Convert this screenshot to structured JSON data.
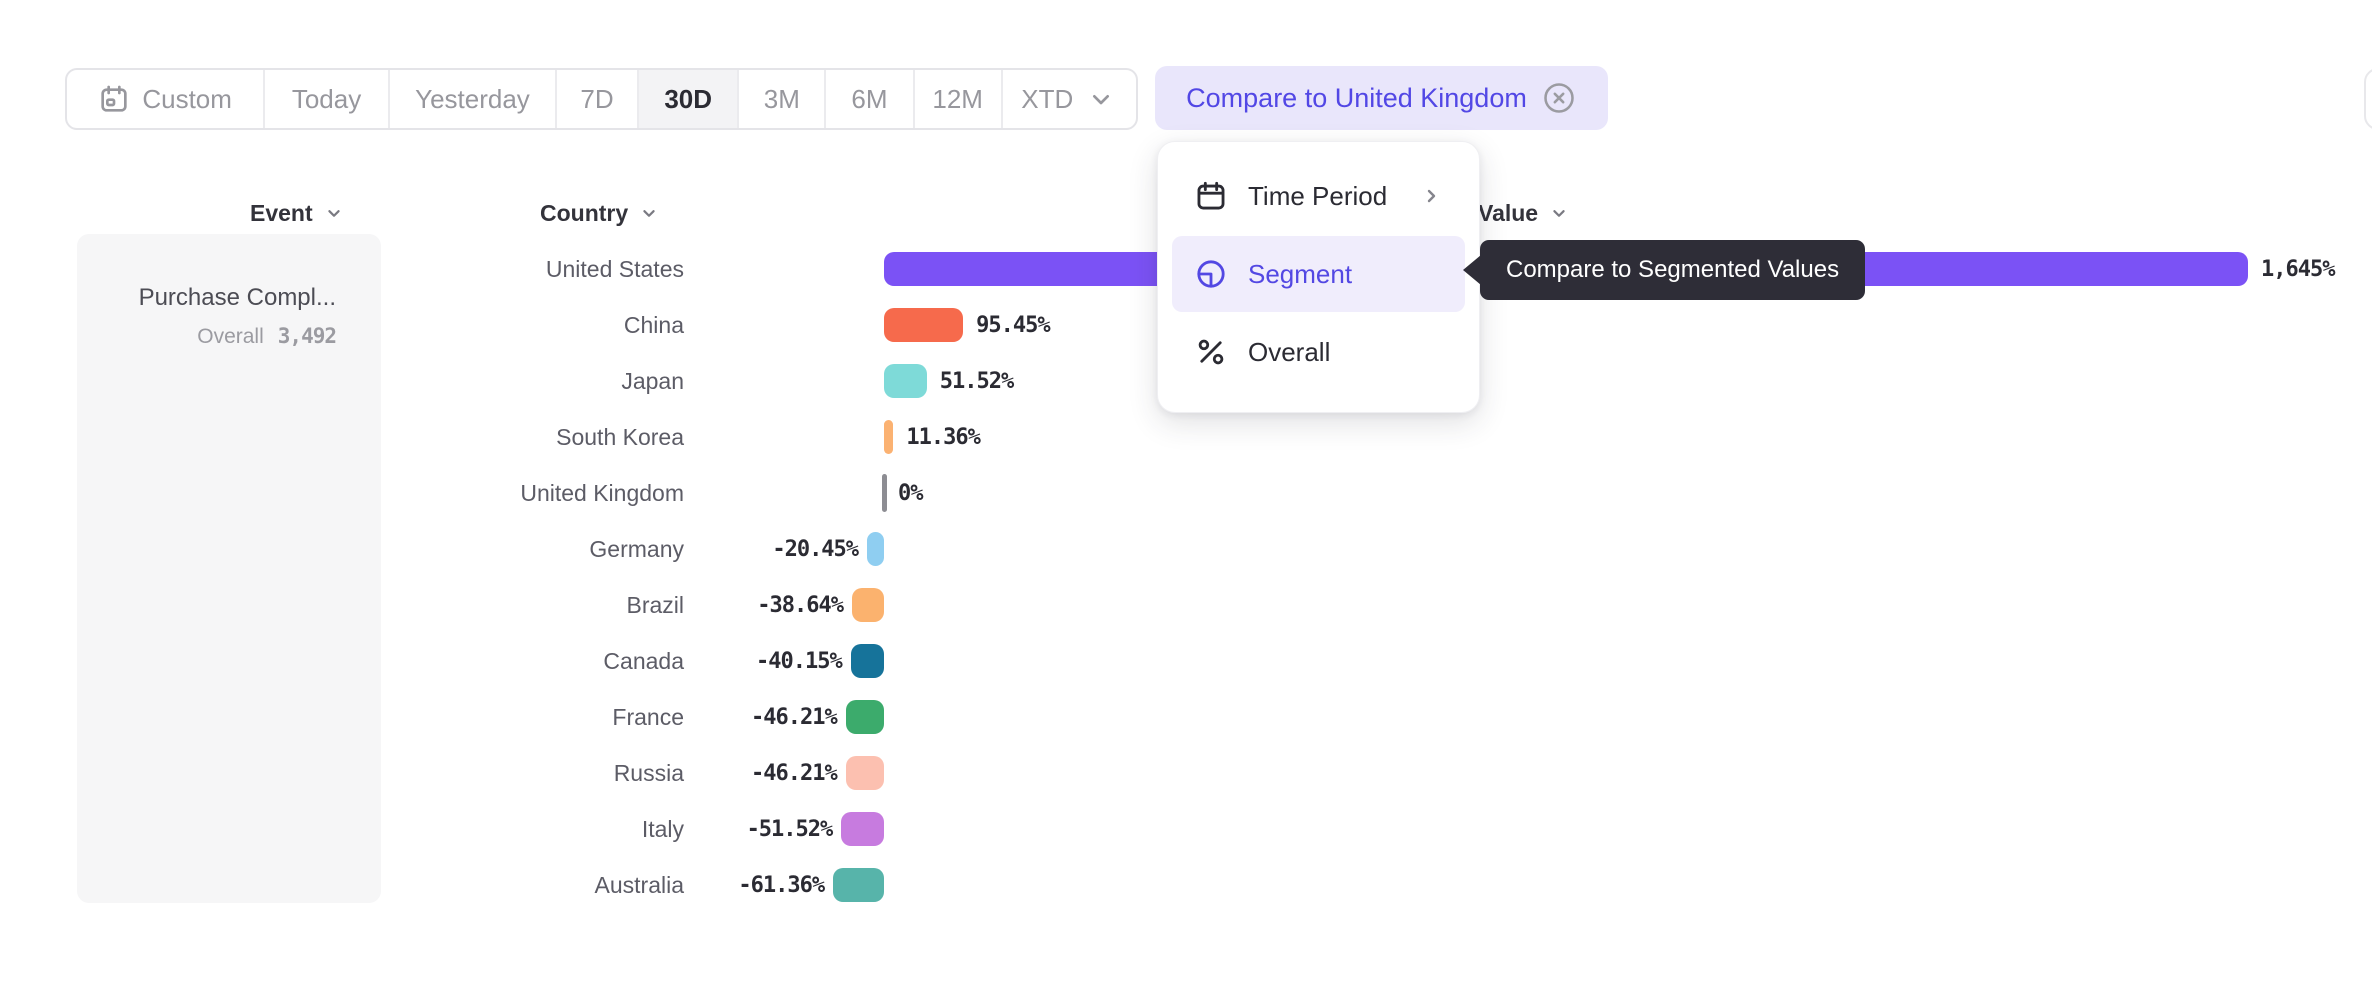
{
  "toolbar": {
    "buttons": [
      {
        "label": "Custom",
        "icon": "calendar",
        "active": false,
        "width": 199
      },
      {
        "label": "Today",
        "icon": null,
        "active": false,
        "width": 125
      },
      {
        "label": "Yesterday",
        "icon": null,
        "active": false,
        "width": 168
      },
      {
        "label": "7D",
        "icon": null,
        "active": false,
        "width": 82
      },
      {
        "label": "30D",
        "icon": null,
        "active": true,
        "width": 101
      },
      {
        "label": "3M",
        "icon": null,
        "active": false,
        "width": 87
      },
      {
        "label": "6M",
        "icon": null,
        "active": false,
        "width": 89
      },
      {
        "label": "12M",
        "icon": null,
        "active": false,
        "width": 88
      },
      {
        "label": "XTD",
        "icon": null,
        "trailing_icon": "chevron-down",
        "active": false,
        "width": 134
      }
    ]
  },
  "compare_chip": {
    "label": "Compare to United Kingdom",
    "close_icon": "circle-x-icon"
  },
  "columns": {
    "event": "Event",
    "country": "Country",
    "value": "Value"
  },
  "event_card": {
    "title": "Purchase Compl...",
    "subtitle_label": "Overall",
    "subtitle_value": "3,492"
  },
  "menu": {
    "items": [
      {
        "label": "Time Period",
        "icon": "calendar-lines",
        "trailing_icon": "chevron-right",
        "active": false
      },
      {
        "label": "Segment",
        "icon": "segment",
        "trailing_icon": null,
        "active": true
      },
      {
        "label": "Overall",
        "icon": "percent",
        "trailing_icon": null,
        "active": false
      }
    ]
  },
  "tooltip": {
    "text": "Compare to Segmented Values"
  },
  "chart_data": {
    "type": "bar",
    "orientation": "horizontal",
    "title": "",
    "xlabel": "Country",
    "ylabel": "Value (% vs United Kingdom)",
    "value_unit": "percent",
    "xlim": [
      -61.36,
      1645
    ],
    "baseline": "United Kingdom = 0%",
    "categories": [
      "United States",
      "China",
      "Japan",
      "South Korea",
      "United Kingdom",
      "Germany",
      "Brazil",
      "Canada",
      "France",
      "Russia",
      "Italy",
      "Australia"
    ],
    "rows": [
      {
        "label": "United States",
        "value": 1645,
        "display": "1,645%",
        "color": "#7B52F5",
        "pattern": "solid"
      },
      {
        "label": "China",
        "value": 95.45,
        "display": "95.45%",
        "color": "#F66A4C",
        "pattern": "solid"
      },
      {
        "label": "Japan",
        "value": 51.52,
        "display": "51.52%",
        "color": "#7EDAD8",
        "pattern": "solid"
      },
      {
        "label": "South Korea",
        "value": 11.36,
        "display": "11.36%",
        "color": "#FBB272",
        "pattern": "solid"
      },
      {
        "label": "United Kingdom",
        "value": 0,
        "display": "0%",
        "color": "#8D8D93",
        "pattern": "solid",
        "zero_line": true
      },
      {
        "label": "Germany",
        "value": -20.45,
        "display": "-20.45%",
        "color": "#8FCEF1",
        "pattern": "dots",
        "dot_color": "#7E7BEF"
      },
      {
        "label": "Brazil",
        "value": -38.64,
        "display": "-38.64%",
        "color": "#FBB26E",
        "pattern": "dots",
        "dot_color": "#FFE3C2"
      },
      {
        "label": "Canada",
        "value": -40.15,
        "display": "-40.15%",
        "color": "#16739A",
        "pattern": "solid"
      },
      {
        "label": "France",
        "value": -46.21,
        "display": "-46.21%",
        "color": "#3CAB6C",
        "pattern": "solid"
      },
      {
        "label": "Russia",
        "value": -46.21,
        "display": "-46.21%",
        "color": "#FCC0B0",
        "pattern": "solid"
      },
      {
        "label": "Italy",
        "value": -51.52,
        "display": "-51.52%",
        "color": "#C77BDF",
        "pattern": "solid"
      },
      {
        "label": "Australia",
        "value": -61.36,
        "display": "-61.36%",
        "color": "#57B4AA",
        "pattern": "solid"
      }
    ]
  }
}
